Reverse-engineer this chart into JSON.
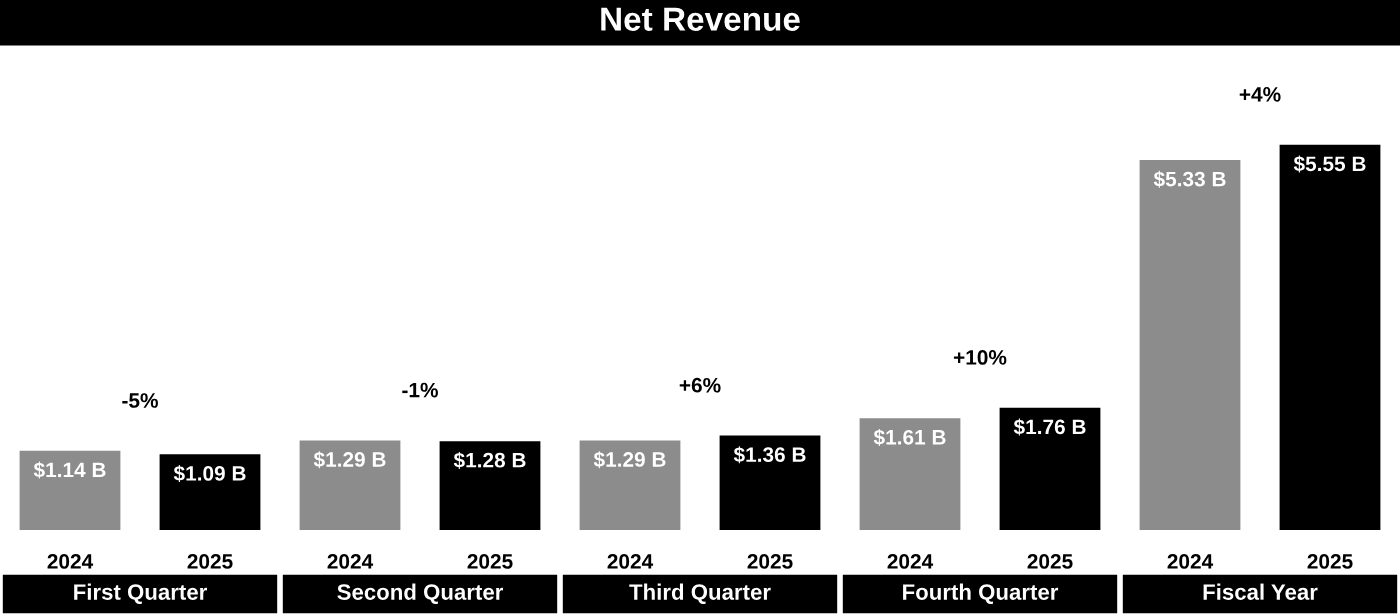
{
  "chart_data": {
    "type": "bar",
    "title": "Net Revenue",
    "categories": [
      "First Quarter",
      "Second Quarter",
      "Third Quarter",
      "Fourth Quarter",
      "Fiscal Year"
    ],
    "series": [
      {
        "name": "2024",
        "color": "#8c8c8c",
        "values": [
          1.14,
          1.29,
          1.29,
          1.61,
          5.33
        ],
        "value_labels": [
          "$1.14 B",
          "$1.29 B",
          "$1.29 B",
          "$1.61 B",
          "$5.33 B"
        ]
      },
      {
        "name": "2025",
        "color": "#000000",
        "values": [
          1.09,
          1.28,
          1.36,
          1.76,
          5.55
        ],
        "value_labels": [
          "$1.09 B",
          "$1.28 B",
          "$1.36 B",
          "$1.76 B",
          "$5.55 B"
        ]
      }
    ],
    "annotations": [
      "-5%",
      "-1%",
      "+6%",
      "+10%",
      "+4%"
    ]
  }
}
